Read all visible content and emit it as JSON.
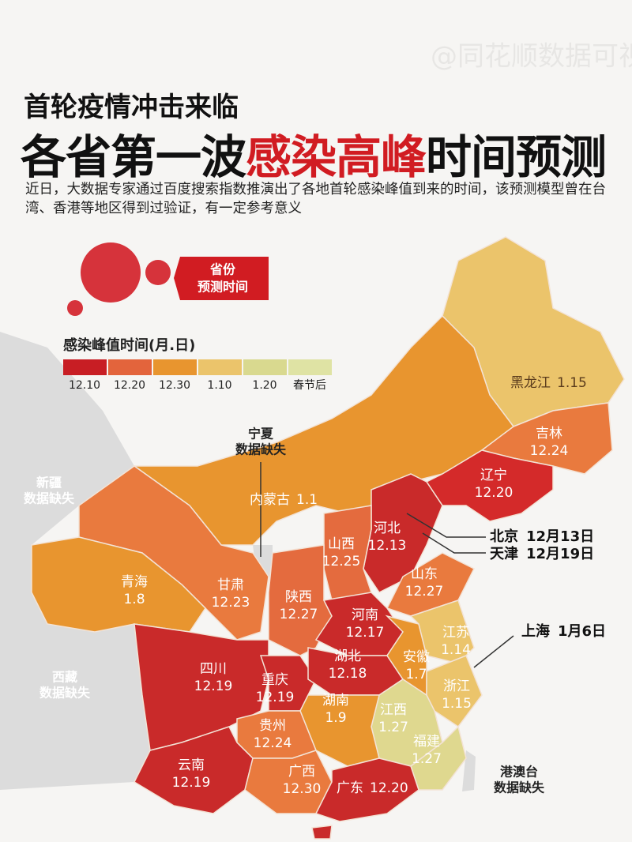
{
  "header": {
    "subtitle": "首轮疫情冲击来临",
    "title_parts": [
      "各省第一波",
      "感染高峰",
      "时间预测"
    ],
    "description": "近日，大数据专家通过百度搜索指数推演出了各地首轮感染峰值到来的时间，该预测模型曾在台湾、香港等地区得到过验证，有一定参考意义"
  },
  "badge": [
    "省份",
    "预测时间"
  ],
  "legend": {
    "title": "感染峰值时间(月.日)",
    "items": [
      {
        "label": "12.10",
        "color": "#c81e24"
      },
      {
        "label": "12.20",
        "color": "#e3643c"
      },
      {
        "label": "12.30",
        "color": "#e8952f"
      },
      {
        "label": "1.10",
        "color": "#ebc46b"
      },
      {
        "label": "1.20",
        "color": "#d9d98f"
      },
      {
        "label": "春节后",
        "color": "#dfe3a4"
      }
    ]
  },
  "regions": [
    {
      "name": "黑龙江",
      "date": "1.15"
    },
    {
      "name": "吉林",
      "date": "12.24"
    },
    {
      "name": "辽宁",
      "date": "12.20"
    },
    {
      "name": "内蒙古",
      "date": "1.1"
    },
    {
      "name": "河北",
      "date": "12.13"
    },
    {
      "name": "山西",
      "date": "12.25"
    },
    {
      "name": "山东",
      "date": "12.27"
    },
    {
      "name": "青海",
      "date": "1.8"
    },
    {
      "name": "甘肃",
      "date": "12.23"
    },
    {
      "name": "陕西",
      "date": "12.27"
    },
    {
      "name": "河南",
      "date": "12.17"
    },
    {
      "name": "江苏",
      "date": "1.14"
    },
    {
      "name": "安徽",
      "date": "1.7"
    },
    {
      "name": "四川",
      "date": "12.19"
    },
    {
      "name": "湖北",
      "date": "12.18"
    },
    {
      "name": "重庆",
      "date": "12.19"
    },
    {
      "name": "浙江",
      "date": "1.15"
    },
    {
      "name": "湖南",
      "date": "1.9"
    },
    {
      "name": "江西",
      "date": "1.27"
    },
    {
      "name": "贵州",
      "date": "12.24"
    },
    {
      "name": "福建",
      "date": "1.27"
    },
    {
      "name": "云南",
      "date": "12.19"
    },
    {
      "name": "广西",
      "date": "12.30"
    },
    {
      "name": "广东",
      "date": "12.20"
    }
  ],
  "callouts": [
    {
      "name": "北京",
      "date": "12月13日"
    },
    {
      "name": "天津",
      "date": "12月19日"
    },
    {
      "name": "上海",
      "date": "1月6日"
    }
  ],
  "missing": [
    {
      "name": "宁夏",
      "note": "数据缺失"
    },
    {
      "name": "新疆",
      "note": "数据缺失"
    },
    {
      "name": "西藏",
      "note": "数据缺失"
    },
    {
      "name": "港澳台",
      "note": "数据缺失"
    }
  ],
  "watermark": "@同花顺数据可视化"
}
